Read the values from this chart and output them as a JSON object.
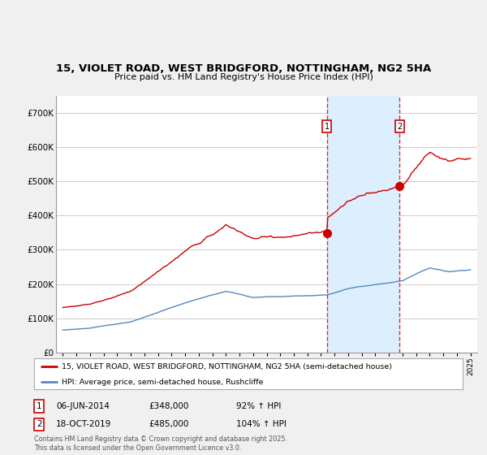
{
  "title_line1": "15, VIOLET ROAD, WEST BRIDGFORD, NOTTINGHAM, NG2 5HA",
  "title_line2": "Price paid vs. HM Land Registry's House Price Index (HPI)",
  "legend_label_red": "15, VIOLET ROAD, WEST BRIDGFORD, NOTTINGHAM, NG2 5HA (semi-detached house)",
  "legend_label_blue": "HPI: Average price, semi-detached house, Rushcliffe",
  "annotation1_label": "1",
  "annotation1_date": "06-JUN-2014",
  "annotation1_price": "£348,000",
  "annotation1_hpi": "92% ↑ HPI",
  "annotation2_label": "2",
  "annotation2_date": "18-OCT-2019",
  "annotation2_price": "£485,000",
  "annotation2_hpi": "104% ↑ HPI",
  "copyright_text": "Contains HM Land Registry data © Crown copyright and database right 2025.\nThis data is licensed under the Open Government Licence v3.0.",
  "red_color": "#cc0000",
  "blue_color": "#5588bb",
  "shade_color": "#ddeeff",
  "marker1_date_year": 2014.43,
  "marker1_price": 348000,
  "marker2_date_year": 2019.79,
  "marker2_price": 485000,
  "vline1_x": 2014.43,
  "vline2_x": 2019.79,
  "ylim_min": 0,
  "ylim_max": 750000,
  "xlim_min": 1994.5,
  "xlim_max": 2025.5,
  "background_color": "#f0f0f0",
  "plot_bg_color": "#ffffff",
  "grid_color": "#cccccc"
}
